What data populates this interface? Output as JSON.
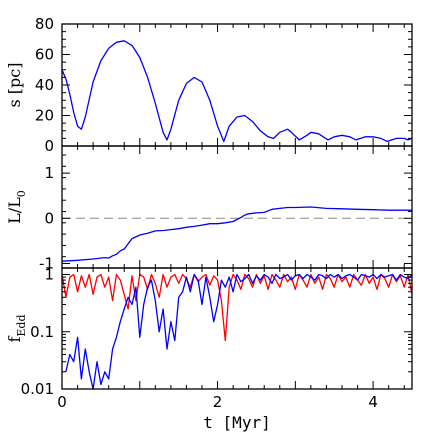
{
  "chart_data": [
    {
      "type": "line",
      "ylabel": "s [pc]",
      "xlim": [
        0,
        4.5
      ],
      "ylim": [
        0,
        80
      ],
      "yticks": [
        0,
        20,
        40,
        60,
        80
      ],
      "series": [
        {
          "color": "#0000ff",
          "x": [
            0.0,
            0.05,
            0.1,
            0.15,
            0.2,
            0.25,
            0.3,
            0.4,
            0.5,
            0.6,
            0.7,
            0.8,
            0.9,
            1.0,
            1.1,
            1.2,
            1.3,
            1.35,
            1.4,
            1.5,
            1.6,
            1.7,
            1.8,
            1.9,
            2.0,
            2.08,
            2.15,
            2.25,
            2.35,
            2.45,
            2.55,
            2.65,
            2.72,
            2.8,
            2.9,
            2.95,
            3.05,
            3.15,
            3.2,
            3.3,
            3.42,
            3.5,
            3.6,
            3.7,
            3.78,
            3.9,
            4.0,
            4.1,
            4.18,
            4.3,
            4.4,
            4.45,
            4.5
          ],
          "y": [
            50,
            44,
            34,
            22,
            13,
            11,
            19,
            42,
            56,
            64,
            68,
            69,
            66,
            58,
            45,
            28,
            9,
            4,
            11,
            30,
            41,
            45,
            42,
            30,
            13,
            3,
            13,
            19,
            20,
            16,
            10,
            6,
            5,
            9,
            11,
            9,
            4,
            7,
            9,
            8,
            4,
            6,
            7,
            6,
            4,
            6,
            6,
            5,
            3,
            5,
            5,
            4,
            5
          ]
        }
      ]
    },
    {
      "type": "line",
      "ylabel": "L/L",
      "ylabel_sub": "0",
      "xlim": [
        0,
        4.5
      ],
      "ylim": [
        -1.1,
        1.6
      ],
      "yticks": [
        -1,
        0,
        1
      ],
      "reference_line": 0,
      "series": [
        {
          "color": "#0000ff",
          "x": [
            0.0,
            0.2,
            0.4,
            0.55,
            0.6,
            0.65,
            0.7,
            0.75,
            0.8,
            0.9,
            1.0,
            1.1,
            1.2,
            1.3,
            1.4,
            1.5,
            1.6,
            1.7,
            1.8,
            1.9,
            2.0,
            2.1,
            2.2,
            2.3,
            2.35,
            2.4,
            2.5,
            2.6,
            2.7,
            2.8,
            2.9,
            3.0,
            3.2,
            3.4,
            3.6,
            3.8,
            4.0,
            4.2,
            4.5
          ],
          "y": [
            -0.95,
            -0.93,
            -0.9,
            -0.87,
            -0.88,
            -0.83,
            -0.8,
            -0.72,
            -0.68,
            -0.45,
            -0.37,
            -0.33,
            -0.28,
            -0.27,
            -0.25,
            -0.23,
            -0.2,
            -0.18,
            -0.15,
            -0.12,
            -0.12,
            -0.1,
            -0.07,
            0.02,
            0.07,
            0.1,
            0.12,
            0.13,
            0.2,
            0.22,
            0.24,
            0.24,
            0.25,
            0.22,
            0.21,
            0.2,
            0.19,
            0.18,
            0.18
          ]
        }
      ]
    },
    {
      "type": "line",
      "ylabel": "f",
      "ylabel_sub": "Edd",
      "xlabel": "t [Myr]",
      "xlim": [
        0,
        4.5
      ],
      "ylim": [
        0.01,
        1.3
      ],
      "yscale": "log",
      "xticks": [
        0,
        2,
        4
      ],
      "yticks": [
        0.01,
        0.1,
        1
      ],
      "ytick_labels": [
        "0.01",
        "0.1",
        "1"
      ],
      "series": [
        {
          "color": "#ff0000",
          "x": [
            0.0,
            0.05,
            0.1,
            0.15,
            0.2,
            0.25,
            0.3,
            0.35,
            0.4,
            0.45,
            0.5,
            0.55,
            0.6,
            0.65,
            0.7,
            0.75,
            0.8,
            0.85,
            0.9,
            0.95,
            1.0,
            1.05,
            1.1,
            1.15,
            1.2,
            1.25,
            1.3,
            1.35,
            1.4,
            1.45,
            1.5,
            1.55,
            1.6,
            1.65,
            1.7,
            1.75,
            1.8,
            1.85,
            1.9,
            1.95,
            2.0,
            2.05,
            2.1,
            2.15,
            2.2,
            2.25,
            2.3,
            2.35,
            2.4,
            2.45,
            2.5,
            2.55,
            2.6,
            2.65,
            2.7,
            2.75,
            2.8,
            2.85,
            2.9,
            2.95,
            3.0,
            3.05,
            3.1,
            3.15,
            3.2,
            3.25,
            3.3,
            3.35,
            3.4,
            3.45,
            3.5,
            3.55,
            3.6,
            3.65,
            3.7,
            3.75,
            3.8,
            3.85,
            3.9,
            3.95,
            4.0,
            4.05,
            4.1,
            4.15,
            4.2,
            4.25,
            4.3,
            4.35,
            4.4,
            4.45,
            4.5
          ],
          "y": [
            1.0,
            0.4,
            0.9,
            1.0,
            0.5,
            0.95,
            0.6,
            1.0,
            0.45,
            0.9,
            1.0,
            0.6,
            0.9,
            0.35,
            1.0,
            0.8,
            0.45,
            0.25,
            0.95,
            0.35,
            1.0,
            0.9,
            0.55,
            1.0,
            0.7,
            0.4,
            1.0,
            0.6,
            0.9,
            1.0,
            0.7,
            1.0,
            0.85,
            0.6,
            1.0,
            0.75,
            0.9,
            1.0,
            0.65,
            0.95,
            0.8,
            0.35,
            0.07,
            0.6,
            1.0,
            0.8,
            0.55,
            1.0,
            0.85,
            0.6,
            1.0,
            0.7,
            0.95,
            0.55,
            1.0,
            0.8,
            0.6,
            1.0,
            0.75,
            0.9,
            0.55,
            1.0,
            0.8,
            0.6,
            1.0,
            0.7,
            0.9,
            0.55,
            1.0,
            0.85,
            0.6,
            1.0,
            0.75,
            0.9,
            0.6,
            1.0,
            0.8,
            0.65,
            1.0,
            0.7,
            0.9,
            0.55,
            1.0,
            0.85,
            0.6,
            1.0,
            0.75,
            0.95,
            0.6,
            1.0,
            0.45
          ]
        },
        {
          "color": "#0000ff",
          "x": [
            0.05,
            0.1,
            0.15,
            0.2,
            0.25,
            0.3,
            0.35,
            0.4,
            0.45,
            0.5,
            0.55,
            0.6,
            0.65,
            0.7,
            0.75,
            0.8,
            0.85,
            0.9,
            0.95,
            1.0,
            1.05,
            1.1,
            1.15,
            1.2,
            1.25,
            1.3,
            1.35,
            1.4,
            1.45,
            1.5,
            1.55,
            1.6,
            1.65,
            1.7,
            1.75,
            1.8,
            1.85,
            1.9,
            1.95,
            2.0,
            2.05,
            2.1,
            2.15,
            2.2,
            2.25,
            2.3,
            2.35,
            2.4,
            2.45,
            2.5,
            2.55,
            2.6,
            2.65,
            2.7,
            2.75,
            2.8,
            2.85,
            2.9,
            2.95,
            3.0,
            3.05,
            3.1,
            3.15,
            3.2,
            3.25,
            3.3,
            3.35,
            3.4,
            3.45,
            3.5,
            3.55,
            3.6,
            3.65,
            3.7,
            3.75,
            3.8,
            3.85,
            3.9,
            3.95,
            4.0,
            4.05,
            4.1,
            4.15,
            4.2,
            4.25,
            4.3,
            4.35,
            4.4,
            4.45,
            4.5
          ],
          "y": [
            0.02,
            0.04,
            0.03,
            0.08,
            0.015,
            0.05,
            0.02,
            0.01,
            0.03,
            0.012,
            0.02,
            0.015,
            0.05,
            0.08,
            0.15,
            0.25,
            0.4,
            0.3,
            0.6,
            0.08,
            0.3,
            0.6,
            0.8,
            0.35,
            0.1,
            0.25,
            0.05,
            0.15,
            0.07,
            0.4,
            0.5,
            0.9,
            0.5,
            1.0,
            0.8,
            0.3,
            0.9,
            0.4,
            0.15,
            0.3,
            0.8,
            0.6,
            0.9,
            0.5,
            1.0,
            0.75,
            0.85,
            1.0,
            0.7,
            0.95,
            0.8,
            1.0,
            0.9,
            0.7,
            1.0,
            0.85,
            0.9,
            1.0,
            0.8,
            0.95,
            1.0,
            0.85,
            1.0,
            0.9,
            0.8,
            1.0,
            0.95,
            0.85,
            1.0,
            0.9,
            1.0,
            0.85,
            0.95,
            1.0,
            0.9,
            0.8,
            1.0,
            0.95,
            0.9,
            1.0,
            0.85,
            1.0,
            0.9,
            0.95,
            1.0,
            0.8,
            1.0,
            0.9,
            0.85,
            1.0
          ]
        }
      ]
    }
  ]
}
